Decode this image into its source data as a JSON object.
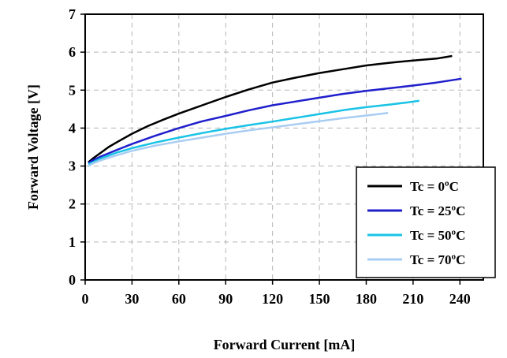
{
  "chart_data": {
    "type": "line",
    "title": "",
    "xlabel": "Forward Current [mA]",
    "ylabel": "Forward Voltage  [V]",
    "xlim": [
      0,
      255
    ],
    "ylim": [
      0,
      7
    ],
    "x_ticks": [
      0,
      30,
      60,
      90,
      120,
      150,
      180,
      210,
      240
    ],
    "y_ticks": [
      0,
      1,
      2,
      3,
      4,
      5,
      6,
      7
    ],
    "x_tick_labels": [
      "0",
      "30",
      "60",
      "90",
      "120",
      "150",
      "180",
      "210",
      "240"
    ],
    "y_tick_labels": [
      "0",
      "1",
      "2",
      "3",
      "4",
      "5",
      "6",
      "7"
    ],
    "grid": "dashed",
    "legend_position": "bottom-right",
    "series": [
      {
        "name": "Tc = 0ºC",
        "color": "#000000",
        "x": [
          2,
          5,
          10,
          15,
          20,
          30,
          40,
          50,
          60,
          75,
          90,
          105,
          120,
          135,
          150,
          165,
          180,
          195,
          210,
          225,
          235
        ],
        "y": [
          3.1,
          3.2,
          3.35,
          3.5,
          3.62,
          3.85,
          4.05,
          4.22,
          4.38,
          4.6,
          4.82,
          5.02,
          5.2,
          5.33,
          5.45,
          5.55,
          5.65,
          5.72,
          5.78,
          5.83,
          5.9
        ]
      },
      {
        "name": "Tc = 25ºC",
        "color": "#1f1fcc",
        "x": [
          2,
          5,
          10,
          20,
          30,
          45,
          60,
          75,
          90,
          105,
          120,
          135,
          150,
          165,
          180,
          195,
          210,
          225,
          241
        ],
        "y": [
          3.08,
          3.15,
          3.25,
          3.42,
          3.58,
          3.8,
          4.0,
          4.18,
          4.32,
          4.47,
          4.6,
          4.7,
          4.8,
          4.9,
          4.98,
          5.05,
          5.12,
          5.2,
          5.3
        ]
      },
      {
        "name": "Tc = 50ºC",
        "color": "#19c3e6",
        "x": [
          2,
          5,
          10,
          20,
          30,
          45,
          60,
          75,
          90,
          105,
          120,
          135,
          150,
          165,
          180,
          195,
          205,
          214
        ],
        "y": [
          3.05,
          3.1,
          3.2,
          3.35,
          3.47,
          3.62,
          3.75,
          3.87,
          3.98,
          4.08,
          4.17,
          4.27,
          4.37,
          4.47,
          4.55,
          4.62,
          4.67,
          4.72
        ]
      },
      {
        "name": "Tc = 70ºC",
        "color": "#a9cdf2",
        "x": [
          2,
          5,
          10,
          20,
          30,
          45,
          60,
          75,
          90,
          105,
          120,
          135,
          150,
          165,
          180,
          194
        ],
        "y": [
          3.0,
          3.07,
          3.15,
          3.28,
          3.4,
          3.54,
          3.65,
          3.75,
          3.85,
          3.94,
          4.02,
          4.1,
          4.18,
          4.26,
          4.33,
          4.4
        ]
      }
    ]
  }
}
